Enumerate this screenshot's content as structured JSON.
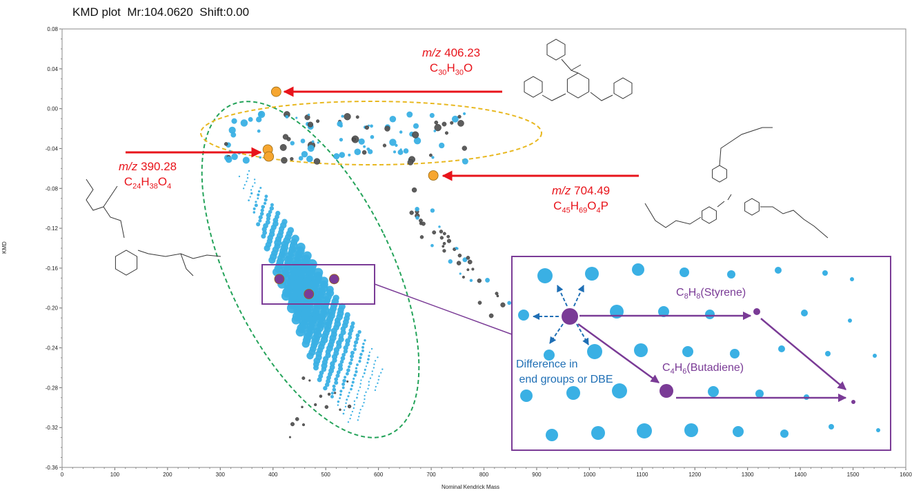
{
  "title": "KMD plot  Mr:104.0620  Shift:0.00",
  "chart_data": {
    "type": "scatter",
    "title": "KMD plot  Mr:104.0620  Shift:0.00",
    "xlabel": "Nominal Kendrick Mass",
    "ylabel": "KMD",
    "xlim": [
      0,
      1600
    ],
    "ylim": [
      -0.36,
      0.08
    ],
    "xticks": [
      0,
      100,
      200,
      300,
      400,
      500,
      600,
      700,
      800,
      900,
      1000,
      1100,
      1200,
      1300,
      1400,
      1500,
      1600
    ],
    "yticks": [
      0.08,
      0.04,
      0.0,
      -0.04,
      -0.08,
      -0.12,
      -0.16,
      -0.2,
      -0.24,
      -0.28,
      -0.32,
      -0.36
    ],
    "ytick_labels": [
      "0.08",
      "0.04",
      "0.00",
      "-0.04",
      "-0.08",
      "-0.12",
      "-0.16",
      "-0.20",
      "-0.24",
      "-0.28",
      "-0.32",
      "-0.36"
    ],
    "grid": false,
    "colors": {
      "blue": "#3ab0e4",
      "gray": "#555555",
      "orange": "#f6a630",
      "purple": "#7a3b96",
      "red": "#e8141b",
      "green_ellipse": "#24a35a",
      "yellow_ellipse": "#e8b820"
    },
    "highlighted_points": [
      {
        "x": 406,
        "y": 0.017,
        "color": "orange"
      },
      {
        "x": 390,
        "y": -0.041,
        "color": "orange"
      },
      {
        "x": 392,
        "y": -0.048,
        "color": "orange"
      },
      {
        "x": 704,
        "y": -0.067,
        "color": "orange"
      },
      {
        "x": 412,
        "y": -0.171,
        "color": "purple"
      },
      {
        "x": 468,
        "y": -0.186,
        "color": "purple"
      },
      {
        "x": 516,
        "y": -0.171,
        "color": "purple"
      }
    ],
    "annotations": [
      {
        "mz_prefix": "m/z",
        "mz_value": "406.23",
        "formula": [
          "C",
          "30",
          "H",
          "30",
          "O",
          ""
        ]
      },
      {
        "mz_prefix": "m/z",
        "mz_value": "390.28",
        "formula": [
          "C",
          "24",
          "H",
          "38",
          "O",
          "4"
        ]
      },
      {
        "mz_prefix": "m/z",
        "mz_value": "704.49",
        "formula": [
          "C",
          "45",
          "H",
          "69",
          "O",
          "4",
          "P",
          ""
        ]
      }
    ]
  },
  "inset": {
    "styrene": {
      "base": "C",
      "s1": "8",
      "mid": "H",
      "s2": "8",
      "rest": "(Styrene)"
    },
    "butadiene": {
      "base": "C",
      "s1": "4",
      "mid": "H",
      "s2": "6",
      "rest": "(Butadiene)"
    },
    "difference_text": "Difference in\n end groups or DBE"
  }
}
